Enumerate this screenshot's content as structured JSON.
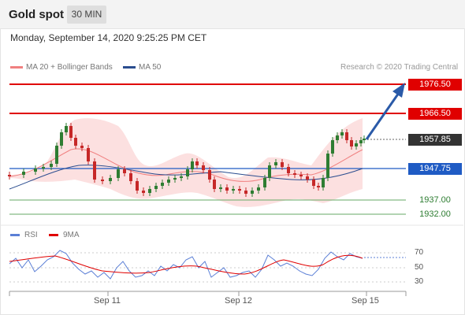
{
  "header": {
    "title": "Gold spot",
    "timeframe": "30 MIN"
  },
  "chart_info": {
    "datetime": "Monday, September 14, 2020 9:25:25 PM CET",
    "legend": [
      {
        "label": "MA 20 + Bollinger Bands",
        "color": "#f08080"
      },
      {
        "label": "MA 50",
        "color": "#2a4d8f"
      }
    ],
    "copyright": "Research © 2020 Trading Central"
  },
  "levels": {
    "resistance_2": "1976.50",
    "resistance_1": "1966.50",
    "current": "1957.85",
    "ma50": "1947.75",
    "support_1": "1937.00",
    "support_2": "1932.00"
  },
  "rsi_panel": {
    "legend": [
      {
        "label": "RSI",
        "color": "#5b7fd6"
      },
      {
        "label": "9MA",
        "color": "#e00000"
      }
    ],
    "ticks": [
      "70",
      "50",
      "30"
    ]
  },
  "x_axis": {
    "labels": [
      "Sep 11",
      "Sep 12",
      "Sep 15"
    ]
  },
  "chart_data": {
    "type": "line",
    "title": "Gold spot",
    "x": [
      "Sep 11",
      "Sep 12",
      "Sep 15"
    ],
    "series": [
      {
        "name": "MA 20 + Bollinger Bands",
        "values": [
          1945,
          1946,
          1950
        ]
      },
      {
        "name": "MA 50",
        "values": [
          1946,
          1947,
          1947.75
        ]
      }
    ],
    "price_levels": [
      1976.5,
      1966.5,
      1957.85,
      1947.75,
      1937.0,
      1932.0
    ],
    "rsi_ticks": [
      70,
      50,
      30
    ],
    "colors": {
      "resistance": "#e00000",
      "support": "#2e7d32",
      "ma50": "#1f5bc4",
      "bollinger": "#fcdada",
      "bull_candle": "#2e7d32",
      "bear_candle": "#c62828"
    }
  }
}
